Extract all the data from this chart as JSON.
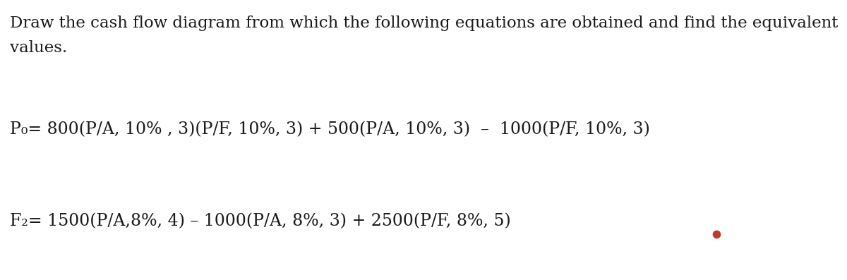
{
  "background_color": "#ffffff",
  "intro_text_line1": "Draw the cash flow diagram from which the following equations are obtained and find the equivalent",
  "intro_text_line2": "values.",
  "eq1_full": "P₀= 800(P/A, 10% , 3)(P/F, 10%, 3) + 500(P/A, 10%, 3)  –  1000(P/F, 10%, 3)",
  "eq2_full": "F₂= 1500(P/A,8%, 4) – 1000(P/A, 8%, 3) + 2500(P/F, 8%, 5)",
  "dot_color": "#c0392b",
  "dot_size": 55,
  "font_size_intro": 16.5,
  "font_size_eq": 17.0,
  "text_color": "#1a1a1a",
  "font_family": "DejaVu Serif"
}
